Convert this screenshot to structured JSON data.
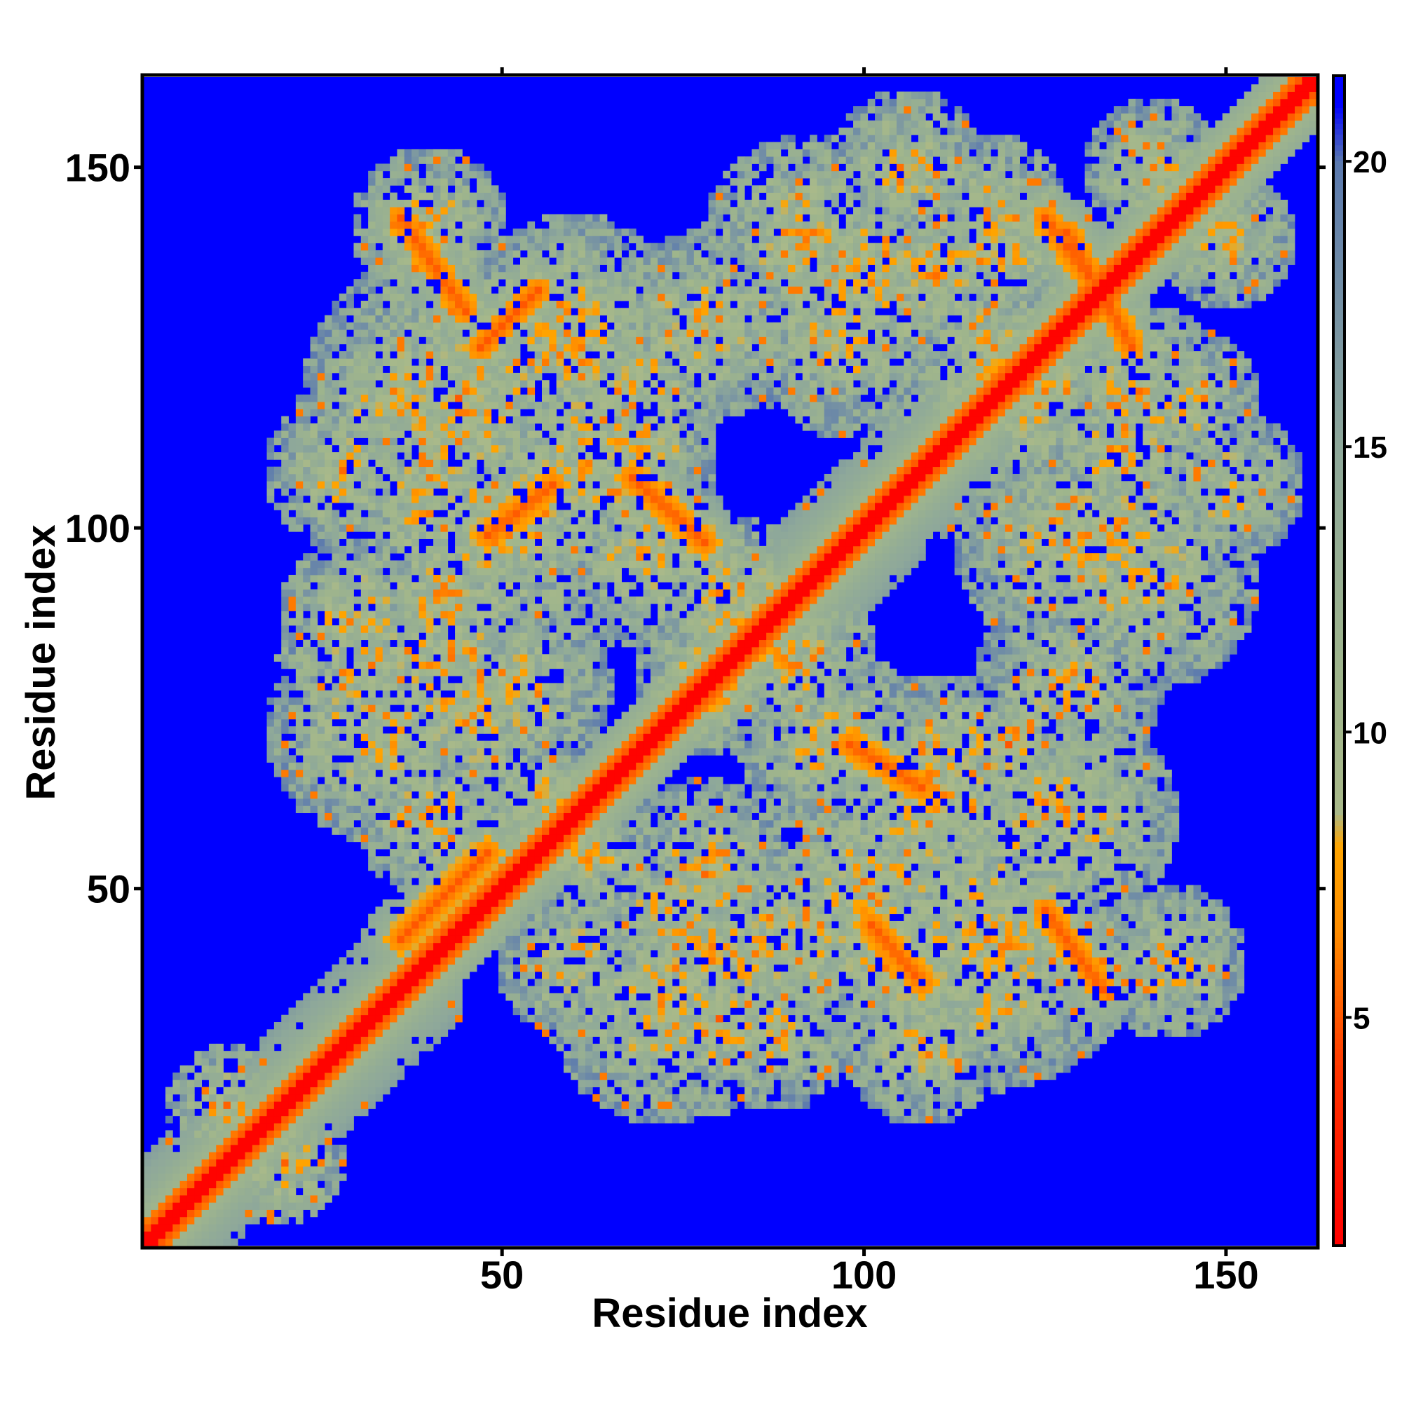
{
  "chart_data": {
    "type": "heatmap",
    "title": "",
    "xlabel": "Residue index",
    "ylabel": "Residue index",
    "n_residues": 162,
    "xlim": [
      0.5,
      162.5
    ],
    "ylim": [
      0.5,
      162.5
    ],
    "x_ticks": [
      50,
      100,
      150
    ],
    "y_ticks": [
      50,
      100,
      150
    ],
    "x_tick_labels": [
      "50",
      "100",
      "150"
    ],
    "y_tick_labels": [
      "50",
      "100",
      "150"
    ],
    "colorbar": {
      "range": [
        1,
        21.5
      ],
      "ticks": [
        5,
        10,
        15,
        20
      ],
      "tick_labels": [
        "5",
        "10",
        "15",
        "20"
      ],
      "stops": [
        {
          "value": 1,
          "color": "#ff0000"
        },
        {
          "value": 4,
          "color": "#ff3300"
        },
        {
          "value": 6.5,
          "color": "#ff8c00"
        },
        {
          "value": 8,
          "color": "#ffa500"
        },
        {
          "value": 8.6,
          "color": "#a9b98a"
        },
        {
          "value": 11,
          "color": "#9fb58c"
        },
        {
          "value": 15,
          "color": "#8ea89a"
        },
        {
          "value": 20,
          "color": "#5b79ae"
        },
        {
          "value": 21,
          "color": "#0000ff"
        }
      ],
      "background_color": "#0000ff"
    },
    "grid": false,
    "legend": "colorbar-right",
    "description_note_segments": [
      {
        "i": [
          1,
          162
        ],
        "j_offset": 0,
        "value": 1.5
      },
      {
        "i": [
          36,
          48
        ],
        "j": [
          43,
          55
        ],
        "value": 6
      },
      {
        "i": [
          48,
          57
        ],
        "j": [
          99,
          106
        ],
        "value": 6
      },
      {
        "i": [
          98,
          108
        ],
        "j": [
          64,
          70
        ],
        "value": 6
      },
      {
        "i": [
          101,
          108
        ],
        "j": [
          37,
          45
        ],
        "value": 6
      },
      {
        "i": [
          125,
          133
        ],
        "j": [
          36,
          47
        ],
        "value": 6
      },
      {
        "i": [
          47,
          55
        ],
        "j": [
          125,
          133
        ],
        "value": 6
      },
      {
        "i": [
          68,
          78
        ],
        "j": [
          98,
          107
        ],
        "value": 6
      },
      {
        "i": [
          128,
          137
        ],
        "j": [
          125,
          141
        ],
        "value": 6
      }
    ]
  }
}
